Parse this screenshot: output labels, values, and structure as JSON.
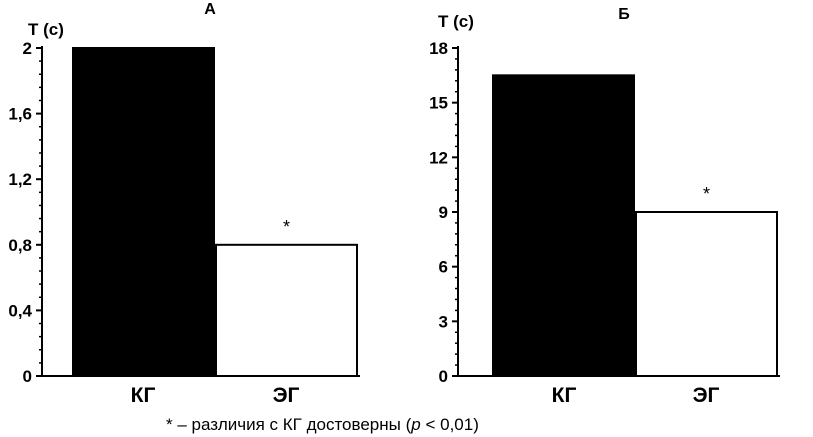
{
  "chart_data": [
    {
      "type": "bar",
      "title": "А",
      "ylabel": "Т (с)",
      "categories": [
        "КГ",
        "ЭГ"
      ],
      "values": [
        2.0,
        0.8
      ],
      "bar_colors": [
        "#000000",
        "#ffffff"
      ],
      "annotations": [
        "",
        "*"
      ],
      "ylim": [
        0,
        2
      ],
      "yticks": [
        0,
        0.4,
        0.8,
        1.2,
        1.6,
        2
      ],
      "ytick_labels": [
        "0",
        "0,4",
        "0,8",
        "1,2",
        "1,6",
        "2"
      ],
      "grid": false
    },
    {
      "type": "bar",
      "title": "Б",
      "ylabel": "Т (с)",
      "categories": [
        "КГ",
        "ЭГ"
      ],
      "values": [
        16.5,
        9.0
      ],
      "bar_colors": [
        "#000000",
        "#ffffff"
      ],
      "annotations": [
        "",
        "*"
      ],
      "ylim": [
        0,
        18
      ],
      "yticks": [
        0,
        3,
        6,
        9,
        12,
        15,
        18
      ],
      "ytick_labels": [
        "0",
        "3",
        "6",
        "9",
        "12",
        "15",
        "18"
      ],
      "grid": false
    }
  ],
  "footnote": {
    "prefix": "* – различия с КГ достоверны (",
    "p": "p",
    "suffix": " < 0,01)"
  }
}
